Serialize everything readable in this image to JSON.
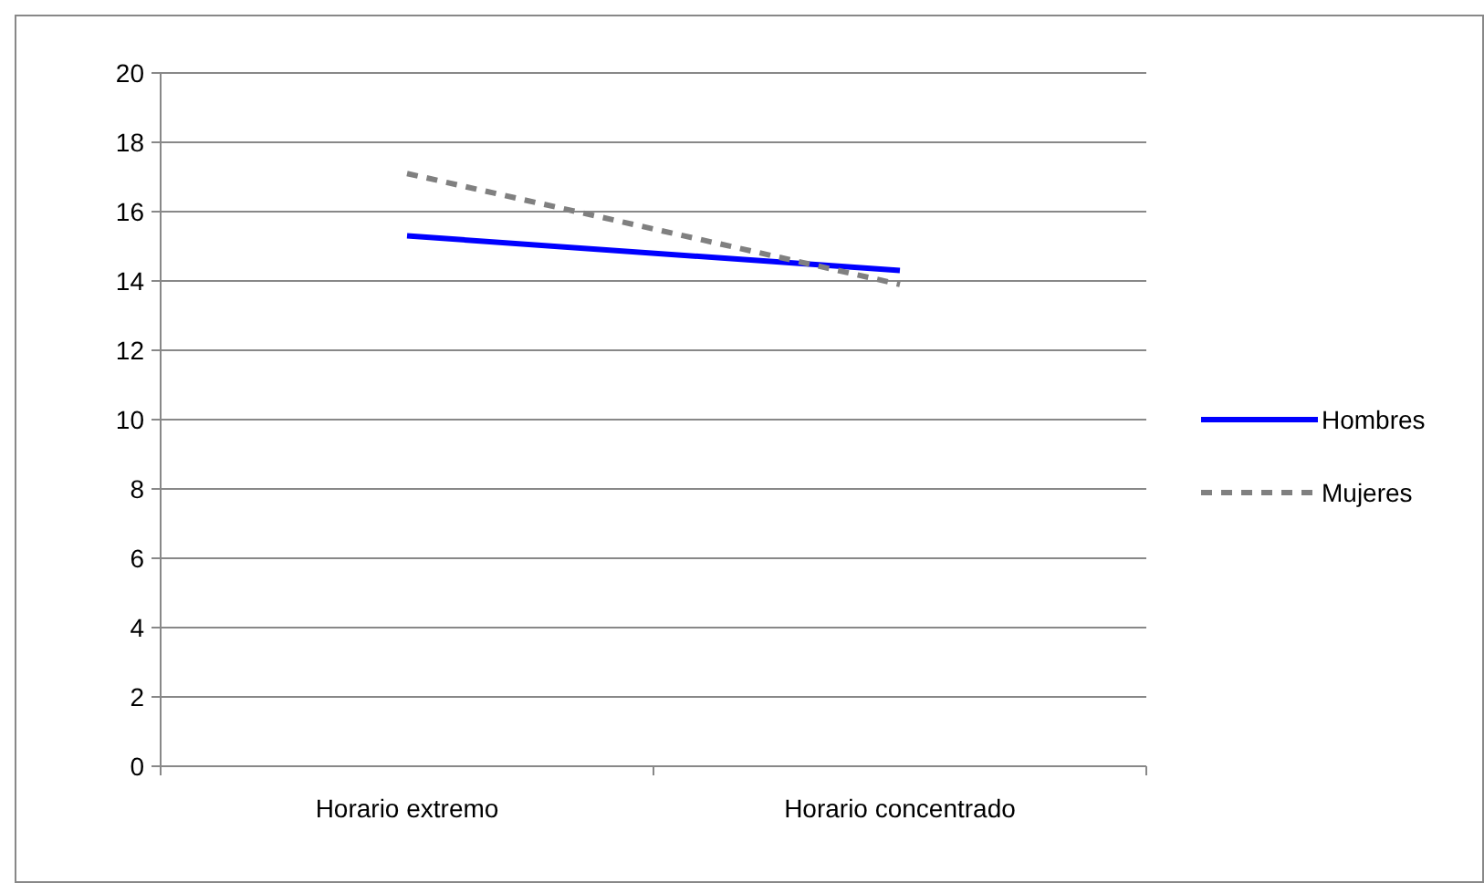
{
  "chart_data": {
    "type": "line",
    "categories": [
      "Horario extremo",
      "Horario concentrado"
    ],
    "series": [
      {
        "name": "Hombres",
        "color": "#0000ff",
        "values": [
          15.3,
          14.3
        ],
        "line_style": "solid"
      },
      {
        "name": "Mujeres",
        "color": "#808080",
        "values": [
          17.1,
          13.9
        ],
        "line_style": "dashed"
      }
    ],
    "ylim": [
      0,
      20
    ],
    "yticks": [
      0,
      2,
      4,
      6,
      8,
      10,
      12,
      14,
      16,
      18,
      20
    ],
    "grid": "y",
    "legend": "right",
    "marker": "none"
  }
}
